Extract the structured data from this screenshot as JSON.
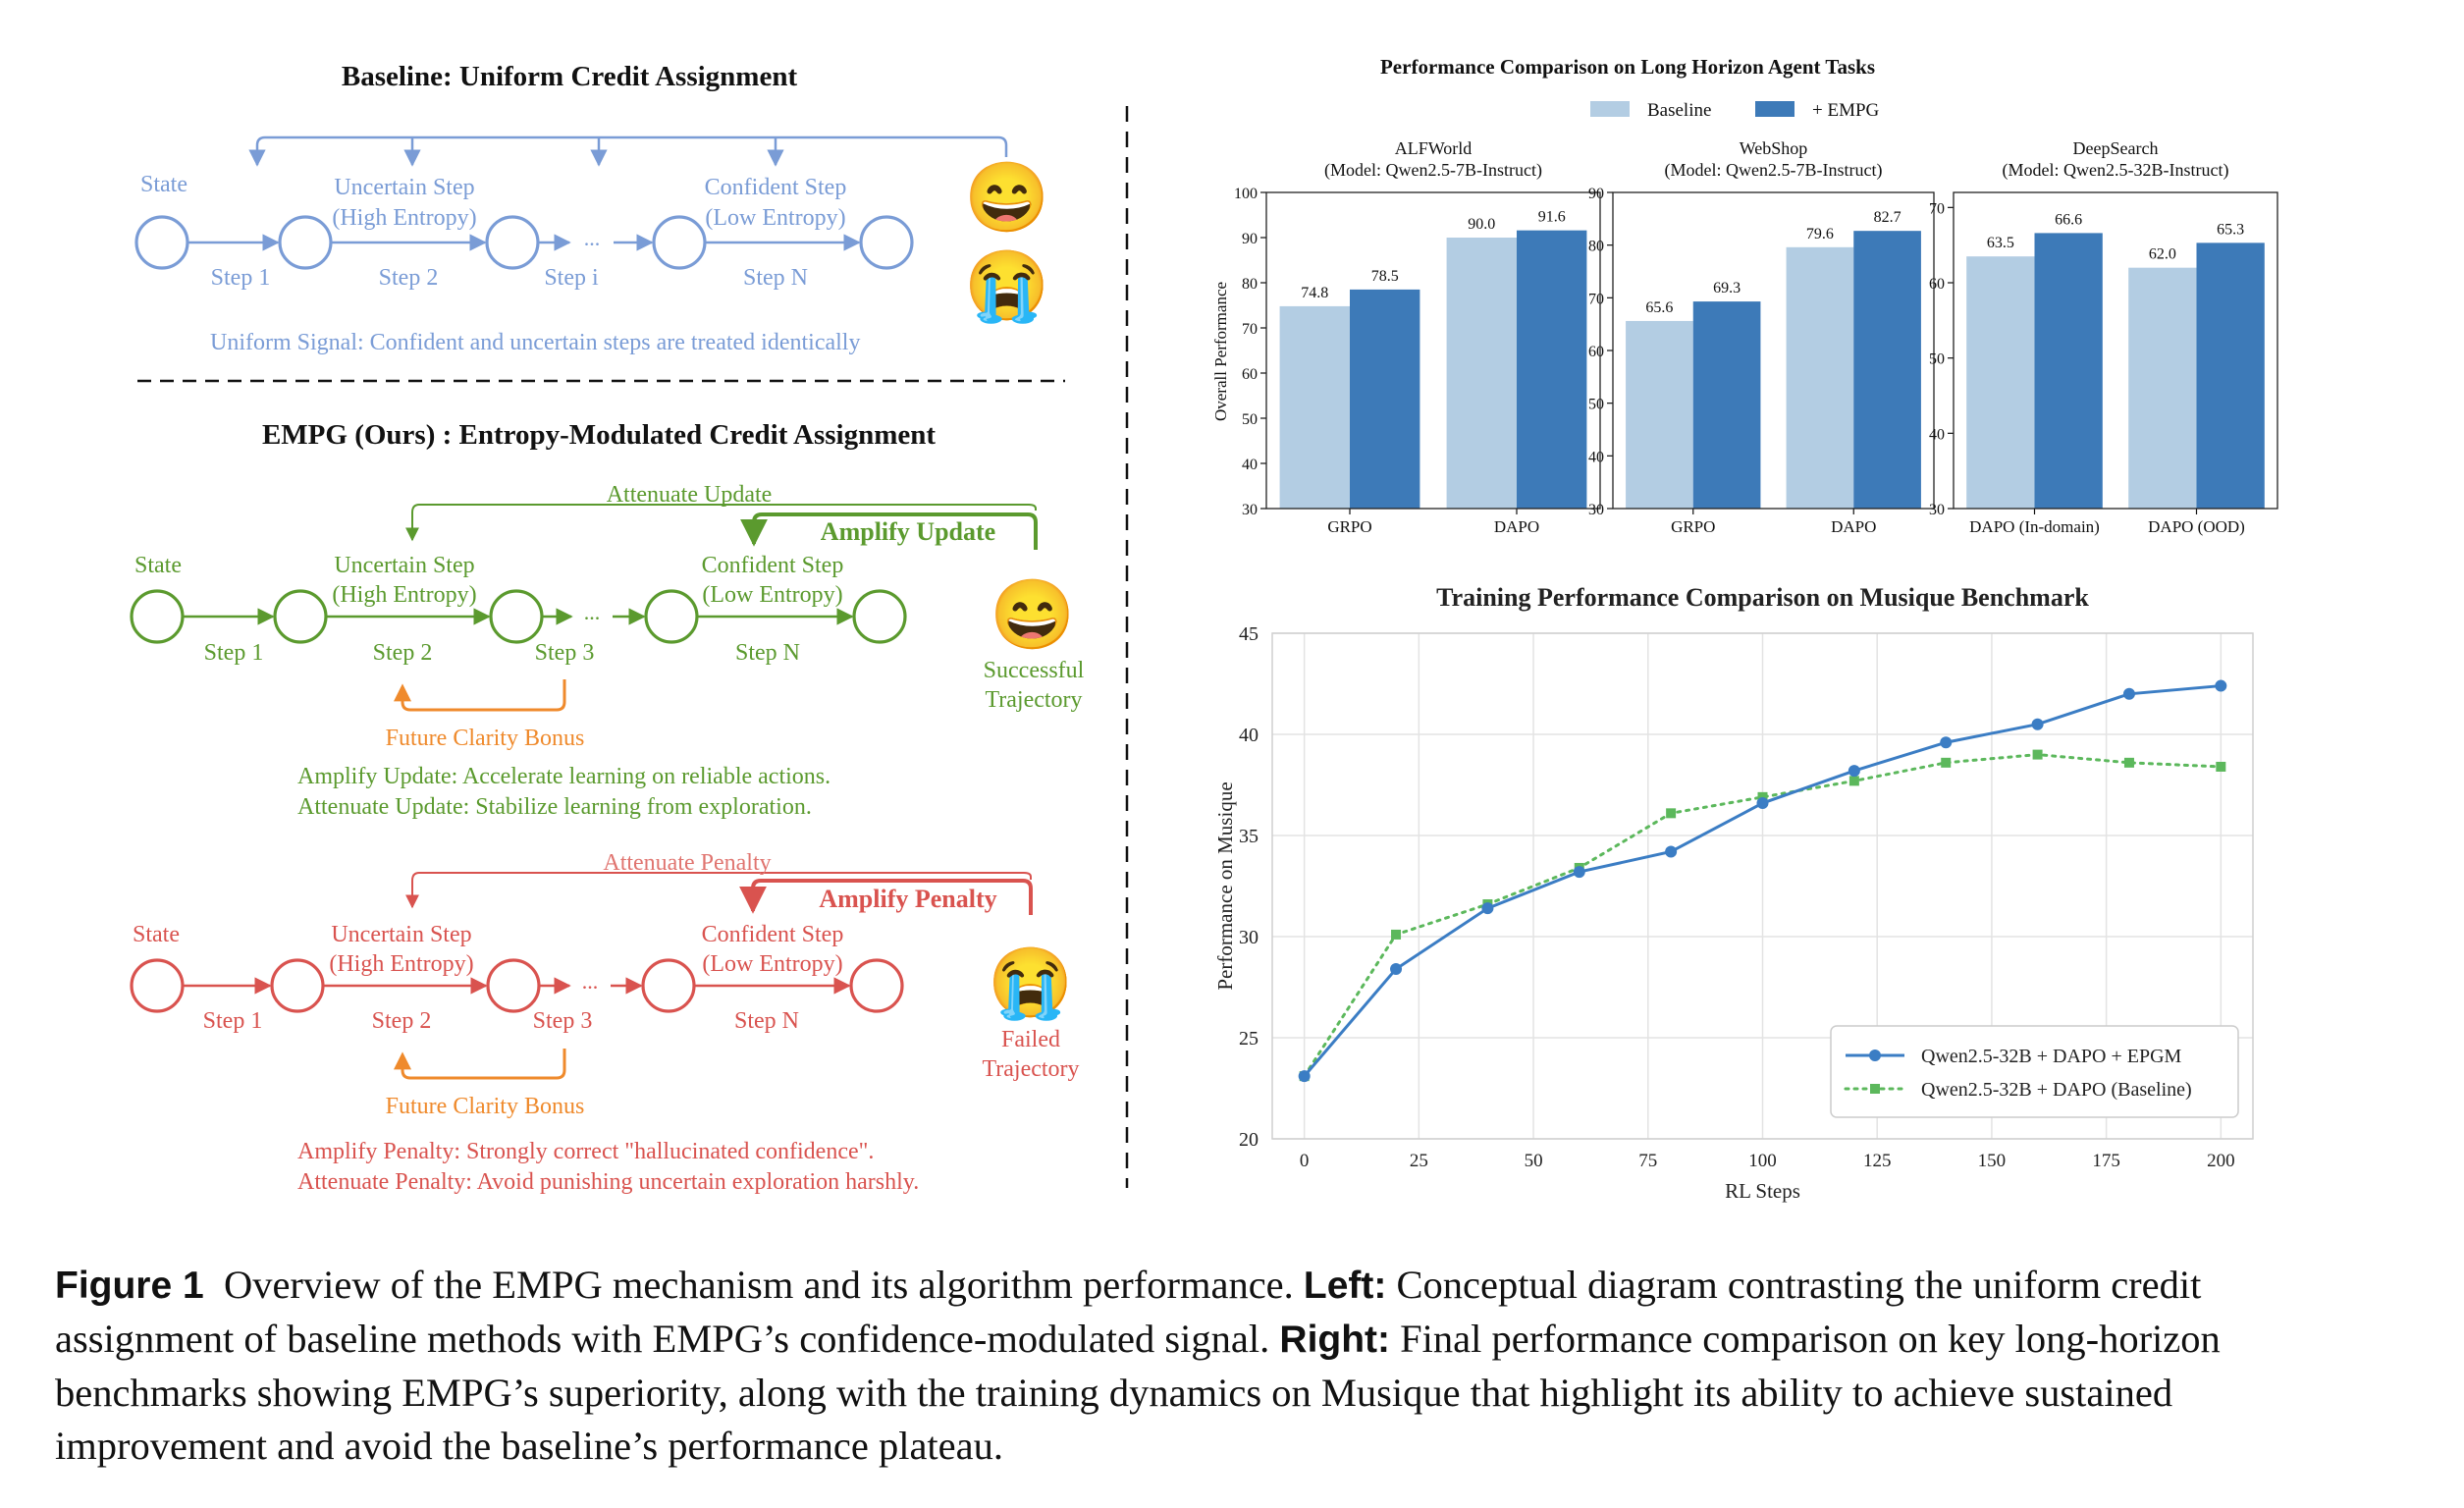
{
  "left": {
    "baseline": {
      "title": "Baseline: Uniform Credit Assignment",
      "state": "State",
      "uncertain": [
        "Uncertain Step",
        "(High Entropy)"
      ],
      "confident": [
        "Confident Step",
        "(Low Entropy)"
      ],
      "steps": [
        "Step 1",
        "Step 2",
        "Step i",
        "Step N"
      ],
      "ellipsis": "...",
      "signal": "Uniform Signal: Confident and uncertain steps are treated identically",
      "color": "#7a9cd6"
    },
    "empg": {
      "title": "EMPG (Ours) : Entropy-Modulated Credit Assignment",
      "success": {
        "state": "State",
        "uncertain": [
          "Uncertain Step",
          "(High Entropy)"
        ],
        "confident": [
          "Confident Step",
          "(Low Entropy)"
        ],
        "steps": [
          "Step 1",
          "Step 2",
          "Step 3",
          "Step N"
        ],
        "ellipsis": "...",
        "attenuate": "Attenuate Update",
        "amplify": "Amplify Update",
        "bonus": "Future Clarity Bonus",
        "outcome": [
          "Successful",
          "Trajectory"
        ],
        "notes": [
          "Amplify Update: Accelerate learning on reliable actions.",
          "Attenuate Update: Stabilize learning from exploration."
        ],
        "color": "#5b9a2e"
      },
      "failure": {
        "state": "State",
        "uncertain": [
          "Uncertain Step",
          "(High Entropy)"
        ],
        "confident": [
          "Confident Step",
          "(Low Entropy)"
        ],
        "steps": [
          "Step 1",
          "Step 2",
          "Step 3",
          "Step N"
        ],
        "ellipsis": "...",
        "attenuate": "Attenuate Penalty",
        "amplify": "Amplify Penalty",
        "bonus": "Future Clarity Bonus",
        "outcome": [
          "Failed",
          "Trajectory"
        ],
        "notes": [
          "Amplify Penalty: Strongly correct \"hallucinated confidence\".",
          "Attenuate Penalty: Avoid punishing uncertain exploration harshly."
        ],
        "color": "#d9534f"
      },
      "bonus_color": "#ef8a2c"
    },
    "emoji": {
      "happy": "😄",
      "crying": "😭"
    }
  },
  "bar_panel": {
    "title": "Performance Comparison on Long Horizon Agent Tasks",
    "legend": [
      "Baseline",
      "+ EMPG"
    ],
    "ylabel": "Overall Performance",
    "colors": {
      "baseline": "#b3cde3",
      "empg": "#3d7ab8"
    }
  },
  "chart_data": [
    {
      "type": "bar",
      "title": "ALFWorld",
      "subtitle": "(Model: Qwen2.5-7B-Instruct)",
      "categories": [
        "GRPO",
        "DAPO"
      ],
      "series": [
        {
          "name": "Baseline",
          "values": [
            74.8,
            90.0
          ]
        },
        {
          "name": "+ EMPG",
          "values": [
            78.5,
            91.6
          ]
        }
      ],
      "labels": [
        [
          "74.8",
          "90.0"
        ],
        [
          "78.5",
          "91.6"
        ]
      ],
      "ylabel": "Overall Performance",
      "ylim": [
        30,
        100
      ],
      "yticks": [
        30,
        40,
        50,
        60,
        70,
        80,
        90,
        100
      ]
    },
    {
      "type": "bar",
      "title": "WebShop",
      "subtitle": "(Model: Qwen2.5-7B-Instruct)",
      "categories": [
        "GRPO",
        "DAPO"
      ],
      "series": [
        {
          "name": "Baseline",
          "values": [
            65.6,
            79.6
          ]
        },
        {
          "name": "+ EMPG",
          "values": [
            69.3,
            82.7
          ]
        }
      ],
      "labels": [
        [
          "65.6",
          "79.6"
        ],
        [
          "69.3",
          "82.7"
        ]
      ],
      "ylim": [
        30,
        90
      ],
      "yticks": [
        30,
        40,
        50,
        60,
        70,
        80,
        90
      ]
    },
    {
      "type": "bar",
      "title": "DeepSearch",
      "subtitle": "(Model: Qwen2.5-32B-Instruct)",
      "categories": [
        "DAPO (In-domain)",
        "DAPO (OOD)"
      ],
      "series": [
        {
          "name": "Baseline",
          "values": [
            63.5,
            62.0
          ]
        },
        {
          "name": "+ EMPG",
          "values": [
            66.6,
            65.3
          ]
        }
      ],
      "labels": [
        [
          "63.5",
          "62.0"
        ],
        [
          "66.6",
          "65.3"
        ]
      ],
      "ylim": [
        30,
        72
      ],
      "yticks": [
        30,
        40,
        50,
        60,
        70
      ]
    },
    {
      "type": "line",
      "title": "Training Performance Comparison on Musique Benchmark",
      "xlabel": "RL Steps",
      "ylabel": "Performance on Musique",
      "xlim": [
        -7,
        207
      ],
      "ylim": [
        20,
        45
      ],
      "xticks": [
        0,
        25,
        50,
        75,
        100,
        125,
        150,
        175,
        200
      ],
      "yticks": [
        20,
        25,
        30,
        35,
        40,
        45
      ],
      "grid": true,
      "legend_position": "lower-right",
      "series": [
        {
          "name": "Qwen2.5-32B + DAPO + EPGM",
          "style": "solid",
          "marker": "circle",
          "color": "#3b7dc4",
          "x": [
            0,
            20,
            40,
            60,
            80,
            100,
            120,
            140,
            160,
            180,
            200
          ],
          "y": [
            23.1,
            28.4,
            31.4,
            33.2,
            34.2,
            36.6,
            38.2,
            39.6,
            40.5,
            42.0,
            42.4
          ]
        },
        {
          "name": "Qwen2.5-32B + DAPO (Baseline)",
          "style": "dotted",
          "marker": "square",
          "color": "#5cb85c",
          "x": [
            0,
            20,
            40,
            60,
            80,
            100,
            120,
            140,
            160,
            180,
            200
          ],
          "y": [
            23.1,
            30.1,
            31.6,
            33.4,
            36.1,
            36.9,
            37.7,
            38.6,
            39.0,
            38.6,
            38.4
          ]
        }
      ]
    }
  ],
  "caption": {
    "label": "Figure 1",
    "text1": "Overview of the EMPG mechanism and its algorithm performance. ",
    "left_label": "Left:",
    "text2": " Conceptual diagram contrasting the uniform credit assignment of baseline methods with EMPG’s confidence-modulated signal. ",
    "right_label": "Right:",
    "text3": " Final performance comparison on key long-horizon benchmarks showing EMPG’s superiority, along with the training dynamics on Musique that highlight its ability to achieve sustained improvement and avoid the baseline’s performance plateau."
  }
}
